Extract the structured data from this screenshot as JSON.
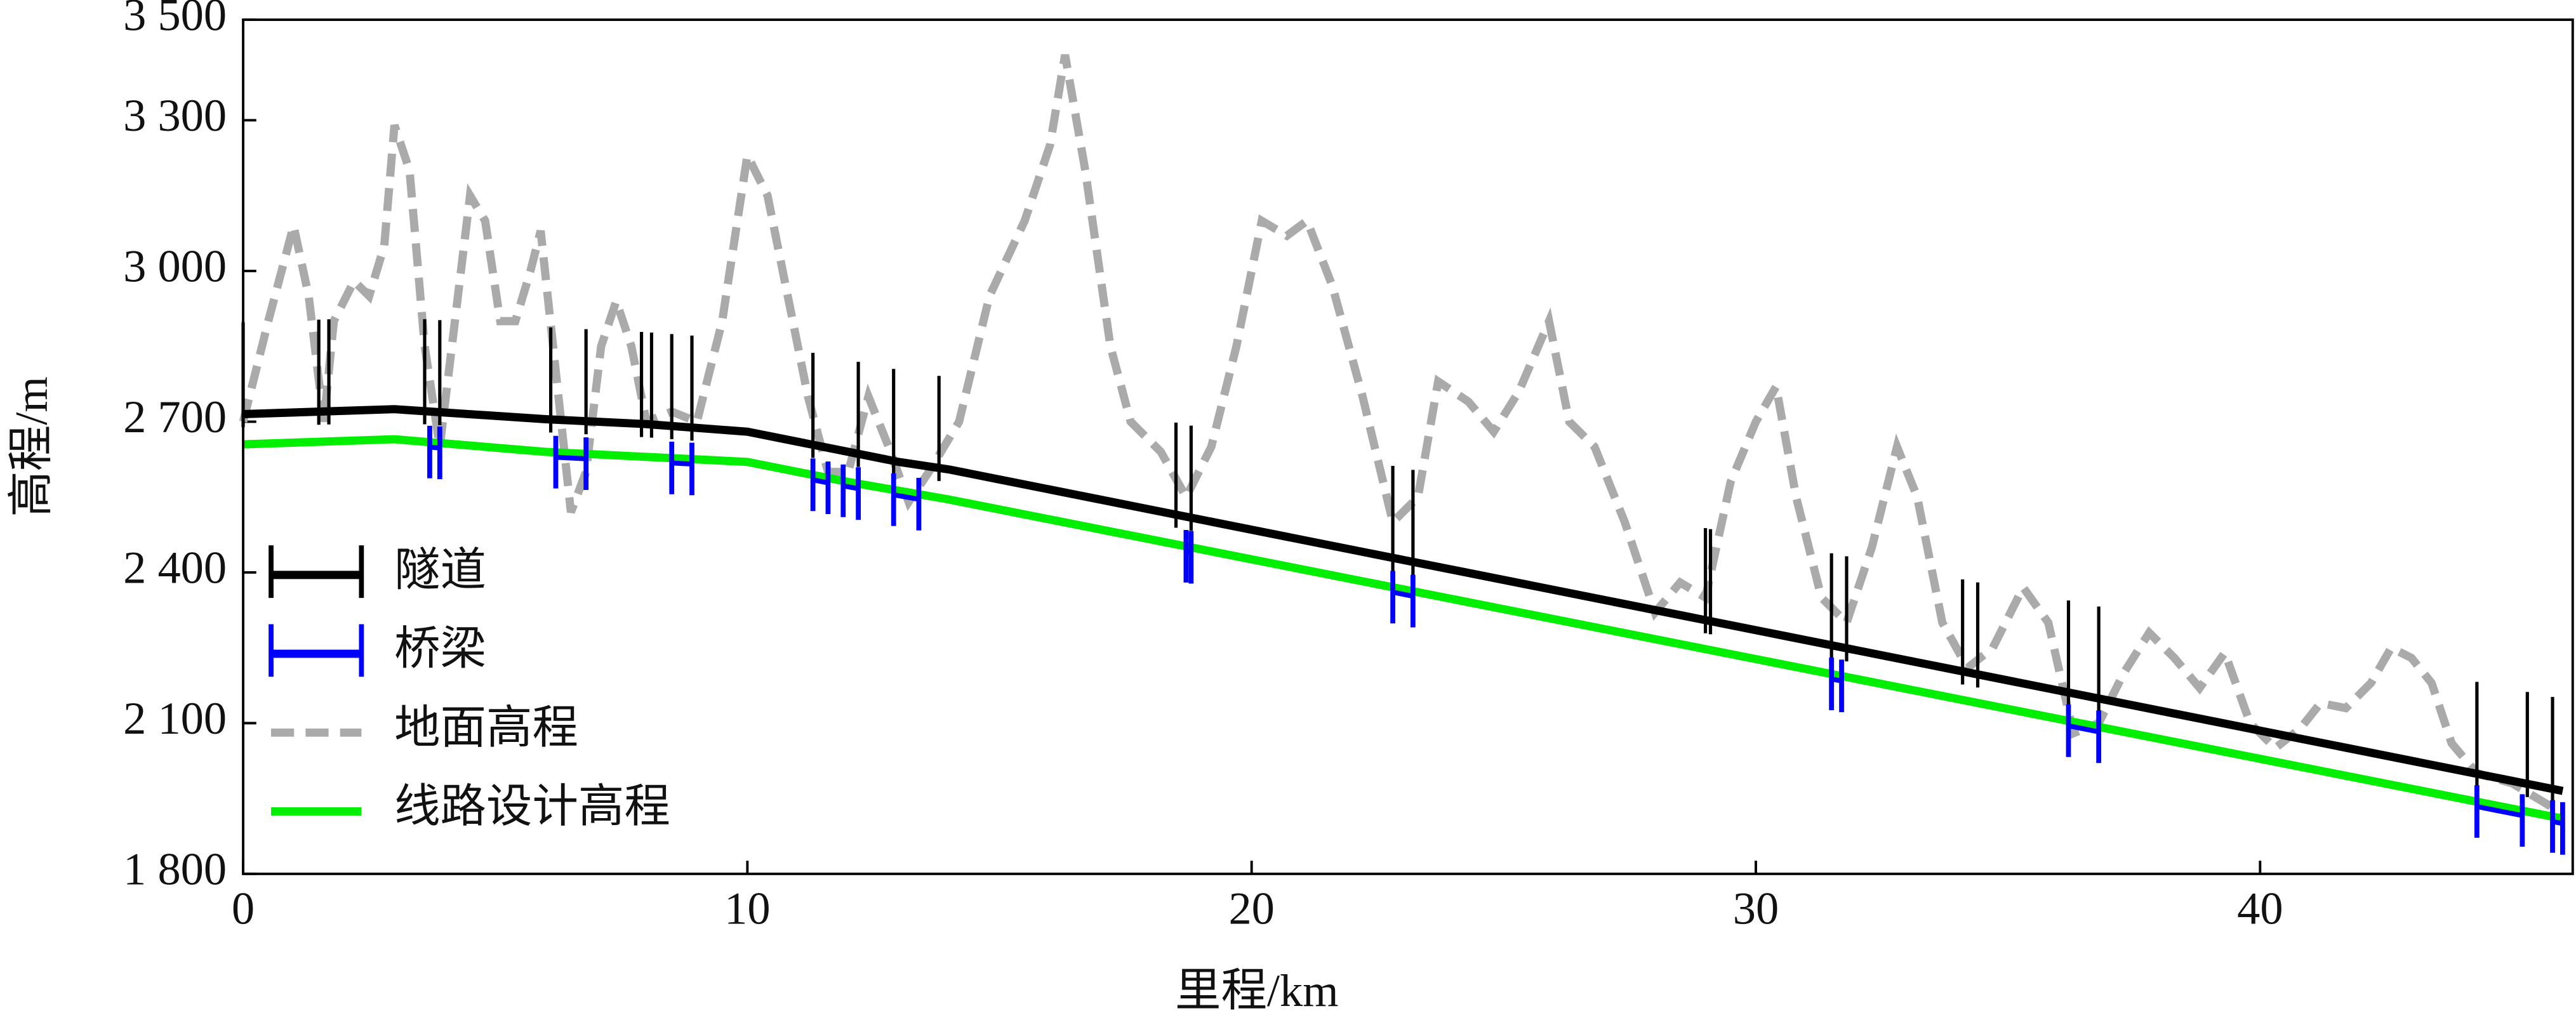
{
  "chart_data": {
    "type": "line",
    "xlabel": "里程/km",
    "ylabel": "高程/m",
    "xlim": [
      0,
      46.2
    ],
    "ylim": [
      1800,
      3500
    ],
    "xticks": [
      0,
      10,
      20,
      30,
      40
    ],
    "yticks": [
      {
        "value": 1800,
        "label": "1 800"
      },
      {
        "value": 2100,
        "label": "2 100"
      },
      {
        "value": 2400,
        "label": "2 400"
      },
      {
        "value": 2700,
        "label": "2 700"
      },
      {
        "value": 3000,
        "label": "3 000"
      },
      {
        "value": 3300,
        "label": "3 300"
      },
      {
        "value": 3500,
        "label": "3 500"
      }
    ],
    "legend": "lower left",
    "series": [
      {
        "name": "隧道",
        "color": "#000000",
        "linestyle": "solid",
        "x": [
          0,
          3,
          6,
          8,
          10,
          11.5,
          13,
          14,
          46
        ],
        "values": [
          2715,
          2725,
          2705,
          2695,
          2680,
          2650,
          2620,
          2605,
          1965
        ],
        "portals": [
          0,
          1.5,
          1.7,
          3.6,
          3.9,
          6.1,
          6.8,
          7.9,
          8.1,
          8.5,
          8.9,
          11.3,
          12.2,
          12.9,
          13.8,
          18.5,
          18.8,
          22.8,
          23.2,
          29.0,
          29.1,
          31.5,
          31.8,
          34.1,
          34.4,
          36.2,
          36.8,
          44.3,
          45.3,
          45.8
        ]
      },
      {
        "name": "桥梁",
        "color": "#0000ff",
        "linestyle": "solid",
        "spans": [
          [
            3.7,
            3.9
          ],
          [
            6.2,
            6.8
          ],
          [
            8.5,
            8.9
          ],
          [
            11.3,
            11.6
          ],
          [
            11.9,
            12.2
          ],
          [
            12.9,
            13.4
          ],
          [
            18.7,
            18.8
          ],
          [
            22.8,
            23.2
          ],
          [
            31.5,
            31.7
          ],
          [
            36.2,
            36.8
          ],
          [
            44.3,
            45.2
          ],
          [
            45.8,
            46.0
          ]
        ]
      },
      {
        "name": "地面高程",
        "color": "#aaaaaa",
        "linestyle": "dashed",
        "x": [
          0,
          0.5,
          1.0,
          1.3,
          1.6,
          1.8,
          2.2,
          2.5,
          2.8,
          3.0,
          3.3,
          3.6,
          3.9,
          4.2,
          4.5,
          4.8,
          5.1,
          5.4,
          5.7,
          5.9,
          6.2,
          6.5,
          6.8,
          7.1,
          7.4,
          7.7,
          8.0,
          8.5,
          9.0,
          9.5,
          10.0,
          10.4,
          10.8,
          11.2,
          11.6,
          12.0,
          12.4,
          12.8,
          13.2,
          13.6,
          14.2,
          14.8,
          15.5,
          16.0,
          16.3,
          16.7,
          17.2,
          17.6,
          18.2,
          18.7,
          19.2,
          19.7,
          20.2,
          20.7,
          21.1,
          21.6,
          22.2,
          22.8,
          23.3,
          23.7,
          24.3,
          24.8,
          25.3,
          25.9,
          26.3,
          26.8,
          27.4,
          28.0,
          28.5,
          29.0,
          29.5,
          30.0,
          30.4,
          30.8,
          31.3,
          31.8,
          32.3,
          32.8,
          33.2,
          33.7,
          34.2,
          34.7,
          35.3,
          35.8,
          36.3,
          36.8,
          37.3,
          37.8,
          38.3,
          38.8,
          39.3,
          39.8,
          40.3,
          40.8,
          41.2,
          41.7,
          42.2,
          42.6,
          43.0,
          43.4,
          43.8,
          44.3,
          45.0,
          46.0
        ],
        "values": [
          2700,
          2900,
          3090,
          2950,
          2700,
          2900,
          2980,
          2950,
          3050,
          3290,
          3200,
          2850,
          2650,
          2900,
          3150,
          3100,
          2900,
          2900,
          3000,
          3080,
          2800,
          2520,
          2600,
          2850,
          2940,
          2850,
          2700,
          2720,
          2700,
          2900,
          3230,
          3150,
          2950,
          2750,
          2600,
          2600,
          2750,
          2650,
          2540,
          2600,
          2700,
          2950,
          3100,
          3250,
          3430,
          3200,
          2850,
          2700,
          2640,
          2550,
          2650,
          2850,
          3100,
          3070,
          3100,
          2970,
          2750,
          2500,
          2550,
          2780,
          2740,
          2680,
          2760,
          2900,
          2700,
          2650,
          2500,
          2320,
          2380,
          2350,
          2580,
          2700,
          2770,
          2550,
          2350,
          2300,
          2450,
          2650,
          2550,
          2300,
          2210,
          2250,
          2370,
          2300,
          2080,
          2100,
          2200,
          2280,
          2230,
          2170,
          2240,
          2100,
          2050,
          2090,
          2140,
          2130,
          2180,
          2250,
          2230,
          2180,
          2060,
          2000,
          1980,
          1920
        ]
      },
      {
        "name": "线路设计高程",
        "color": "#00ee00",
        "linestyle": "solid",
        "x": [
          0,
          3,
          6,
          10,
          12,
          14,
          46
        ],
        "values": [
          2655,
          2665,
          2640,
          2620,
          2580,
          2545,
          1910
        ]
      }
    ]
  }
}
